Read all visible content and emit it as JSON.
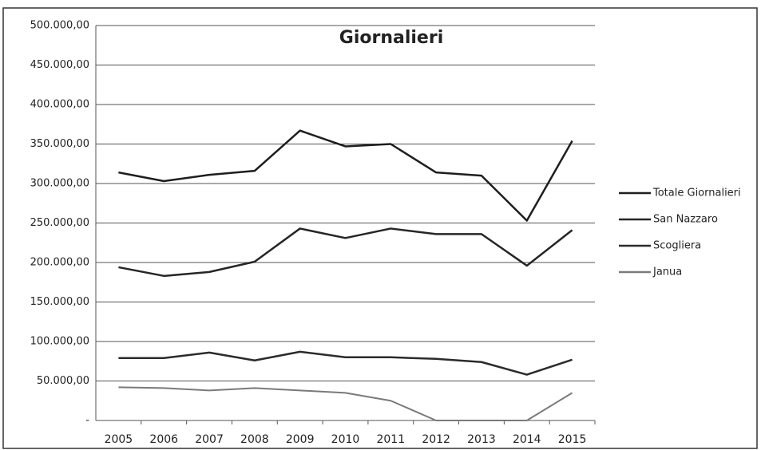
{
  "chart_data": {
    "type": "line",
    "title": "Giornalieri",
    "categories": [
      "2005",
      "2006",
      "2007",
      "2008",
      "2009",
      "2010",
      "2011",
      "2012",
      "2013",
      "2014",
      "2015"
    ],
    "series": [
      {
        "name": "Totale Giornalieri",
        "color": "#1e1e1e",
        "values": [
          314000,
          303000,
          311000,
          316000,
          367000,
          347000,
          350000,
          314000,
          310000,
          253000,
          354000
        ]
      },
      {
        "name": "San Nazzaro",
        "color": "#262626",
        "values": [
          194000,
          183000,
          188000,
          201000,
          243000,
          231000,
          243000,
          236000,
          236000,
          196000,
          241000
        ]
      },
      {
        "name": "Scogliera",
        "color": "#2b2b2b",
        "values": [
          79000,
          79000,
          86000,
          76000,
          87000,
          80000,
          80000,
          78000,
          74000,
          58000,
          77000
        ]
      },
      {
        "name": "Janua",
        "color": "#7a7a7a",
        "values": [
          42000,
          41000,
          38000,
          41000,
          38000,
          35000,
          25000,
          0,
          0,
          0,
          35000
        ]
      }
    ],
    "ylim": [
      0,
      500000
    ],
    "yticks": [
      {
        "value": 0,
        "label": "-"
      },
      {
        "value": 50000,
        "label": "50.000,00"
      },
      {
        "value": 100000,
        "label": "100.000,00"
      },
      {
        "value": 150000,
        "label": "150.000,00"
      },
      {
        "value": 200000,
        "label": "200.000,00"
      },
      {
        "value": 250000,
        "label": "250.000,00"
      },
      {
        "value": 300000,
        "label": "300.000,00"
      },
      {
        "value": 350000,
        "label": "350.000,00"
      },
      {
        "value": 400000,
        "label": "400.000,00"
      },
      {
        "value": 450000,
        "label": "450.000,00"
      },
      {
        "value": 500000,
        "label": "500.000,00"
      }
    ],
    "grid": true,
    "legend": "right"
  }
}
